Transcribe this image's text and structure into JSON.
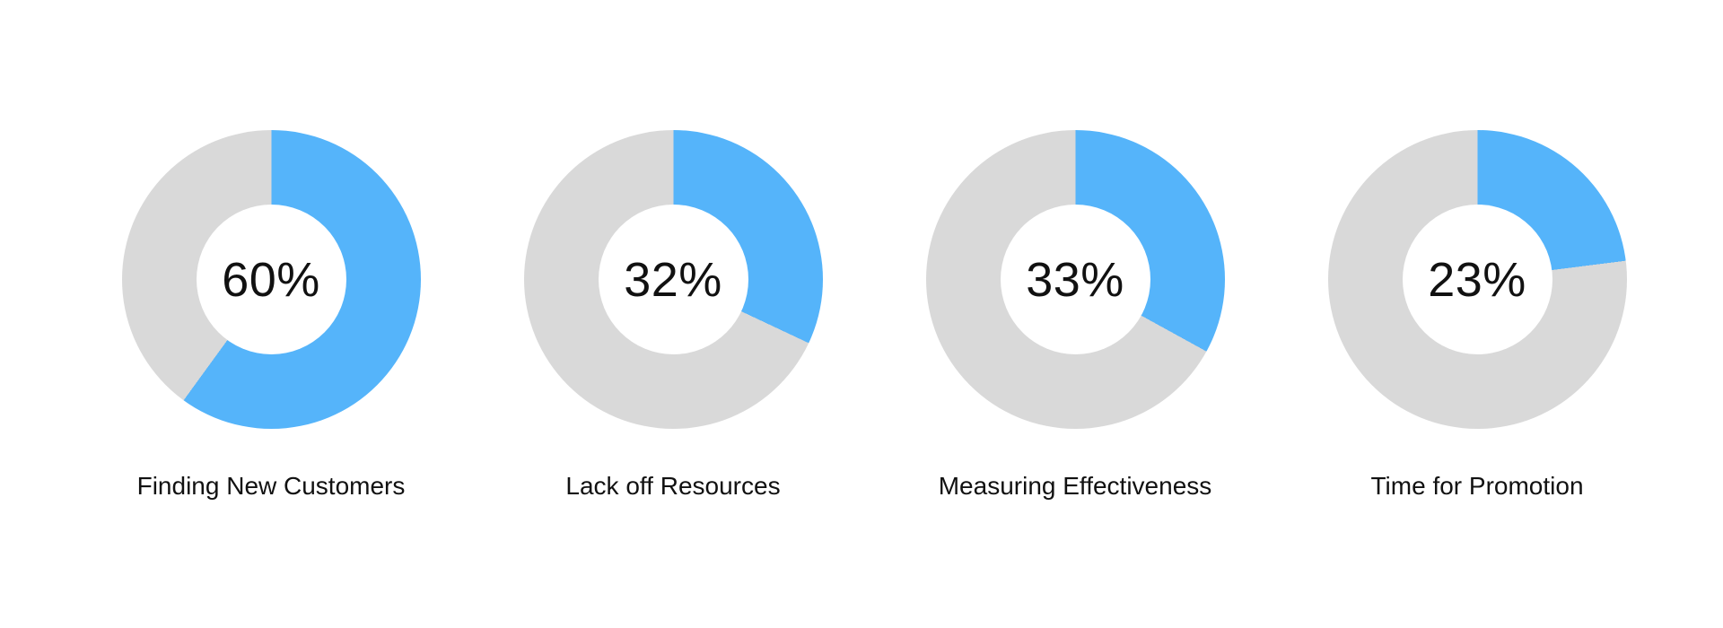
{
  "chart_data": {
    "type": "pie",
    "variant": "donut-small-multiples",
    "categories": [
      "Finding New Customers",
      "Lack off Resources",
      "Measuring Effectiveness",
      "Time for Promotion"
    ],
    "values": [
      60,
      32,
      33,
      23
    ],
    "unit": "%",
    "items": [
      {
        "label": "Finding New Customers",
        "percent": 60,
        "percent_label": "60%"
      },
      {
        "label": "Lack off Resources",
        "percent": 32,
        "percent_label": "32%"
      },
      {
        "label": "Measuring Effectiveness",
        "percent": 33,
        "percent_label": "33%"
      },
      {
        "label": "Time for Promotion",
        "percent": 23,
        "percent_label": "23%"
      }
    ],
    "colors": {
      "filled": "#55B4FA",
      "remainder": "#D9D9D9",
      "text": "#111111",
      "background": "#FFFFFF"
    },
    "legend": "none",
    "start_angle_deg": 0,
    "direction": "clockwise"
  }
}
